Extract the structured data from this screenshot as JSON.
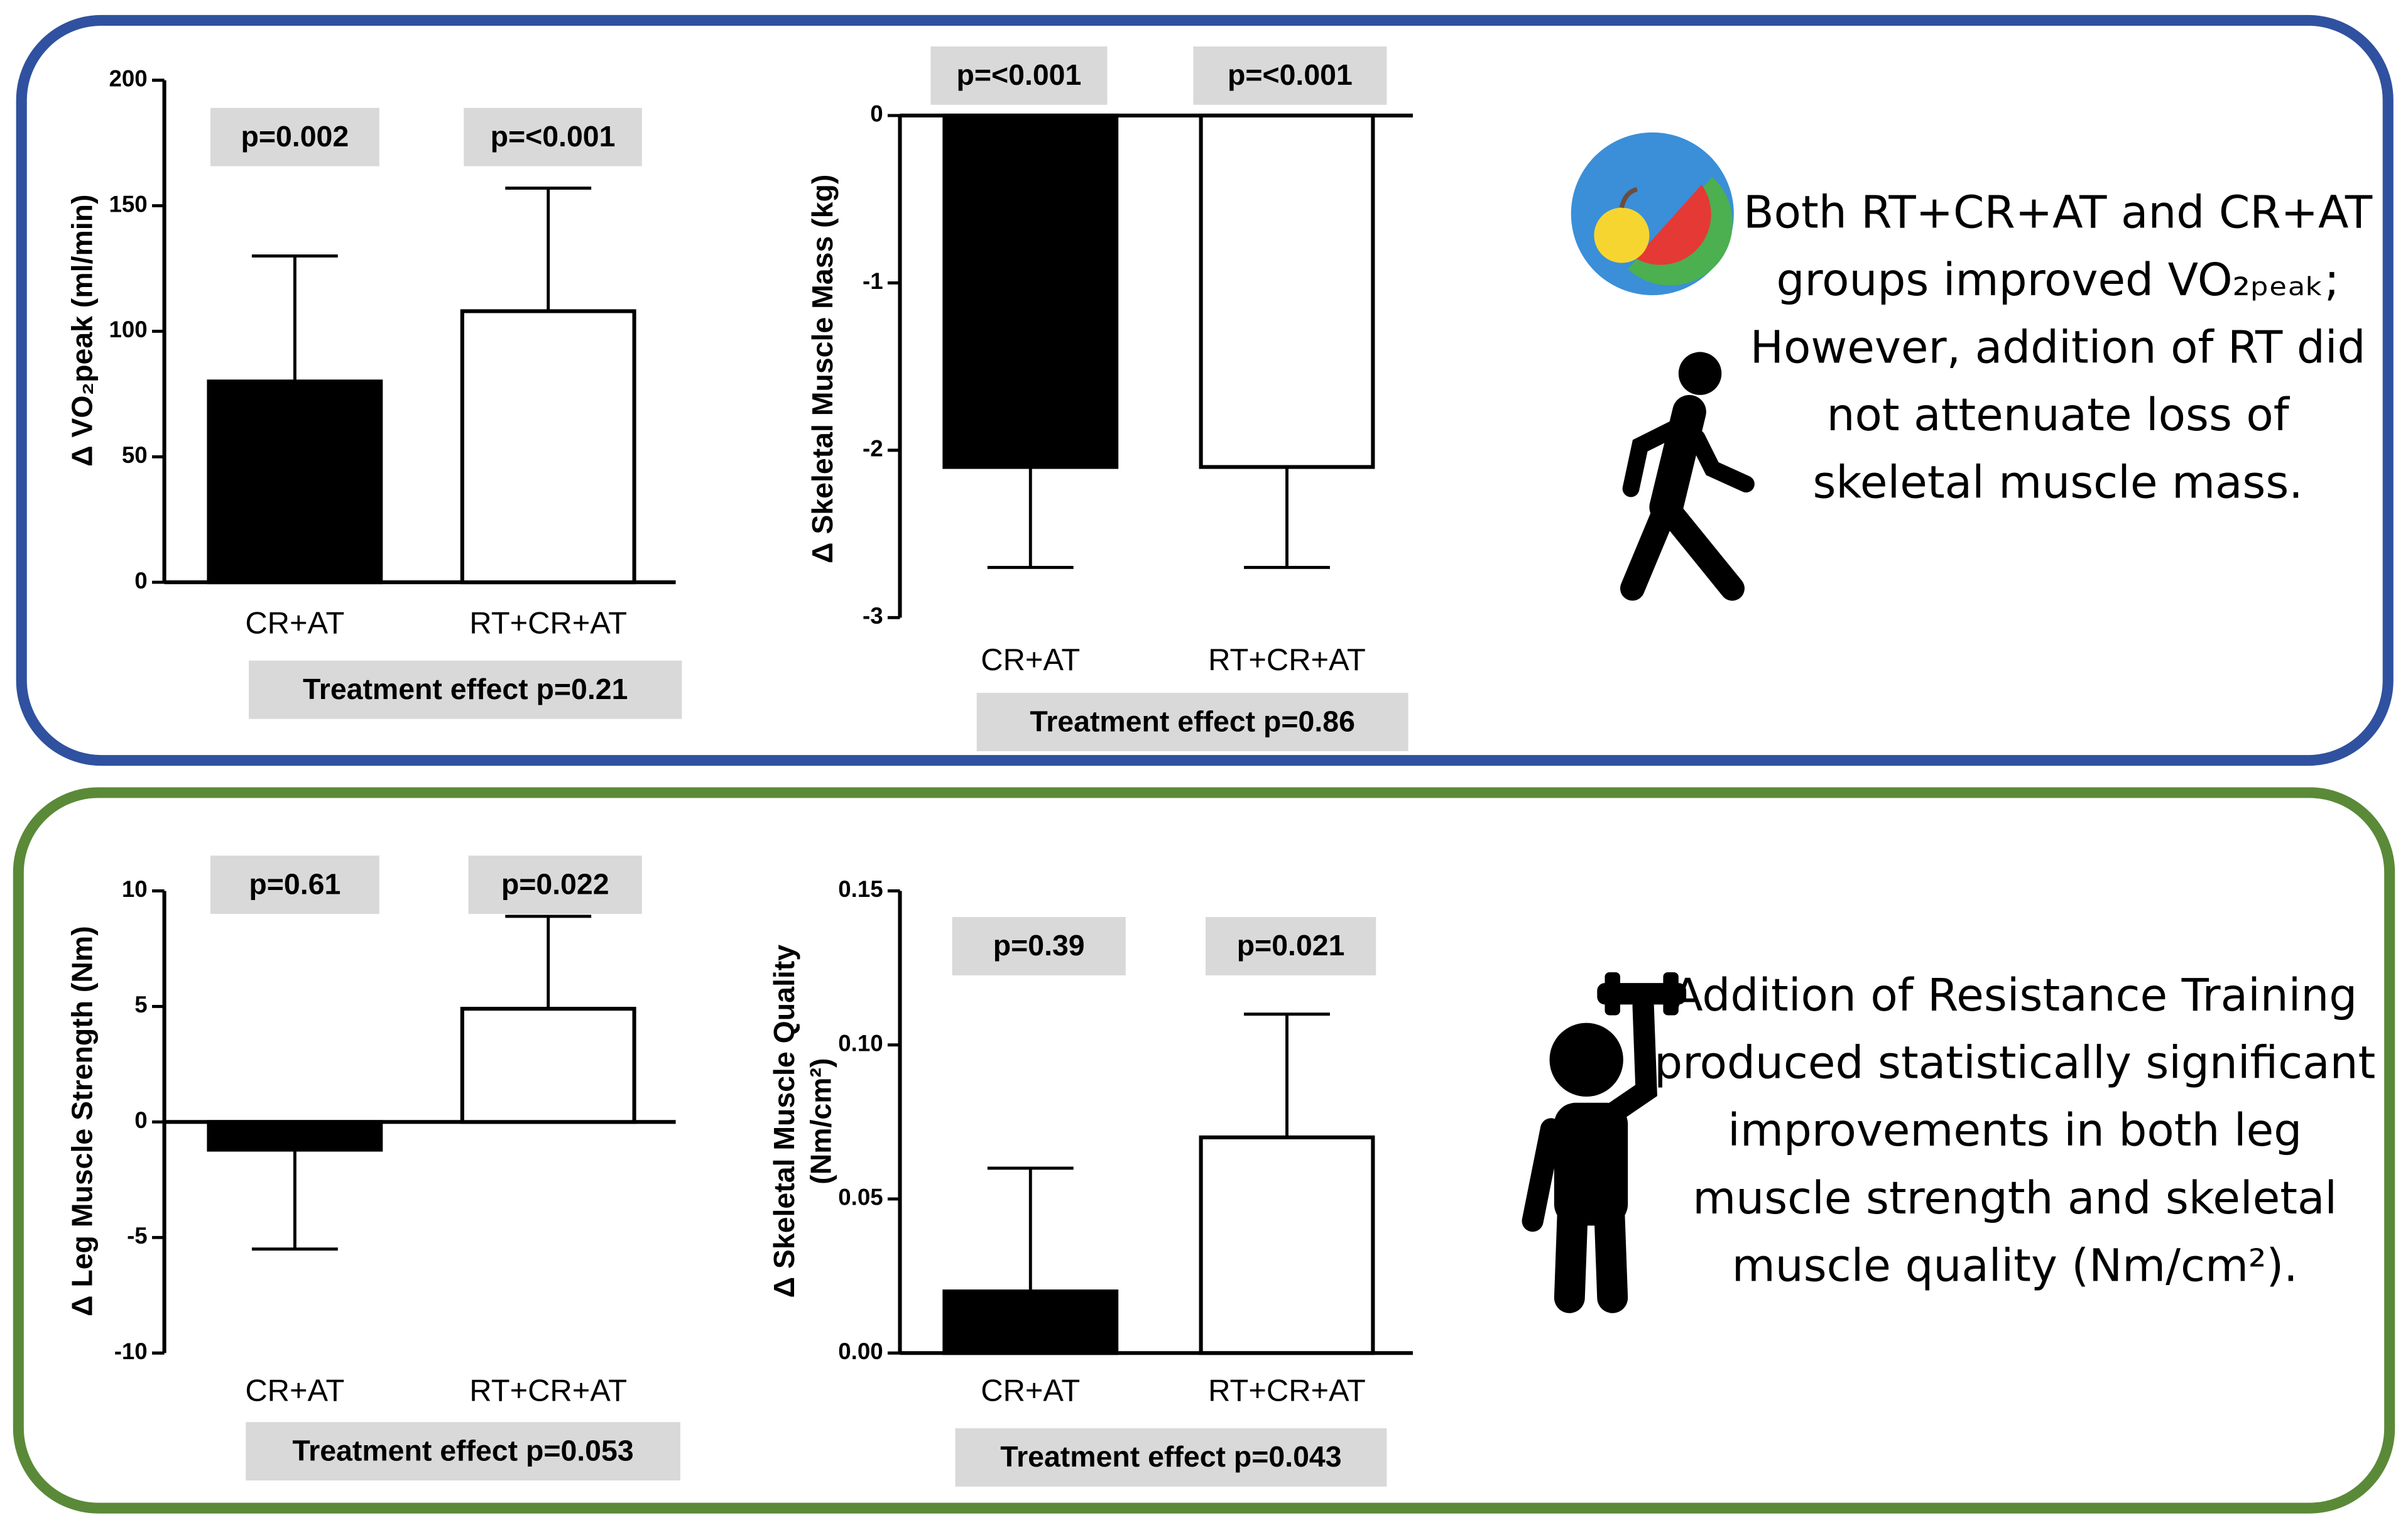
{
  "chart_data": [
    {
      "type": "bar",
      "ylabel": "Δ VO₂peak (ml/min)",
      "categories": [
        "CR+AT",
        "RT+CR+AT"
      ],
      "values": [
        80,
        108
      ],
      "errors": [
        50,
        49
      ],
      "colors": [
        "#000000",
        "#ffffff"
      ],
      "ylim": [
        0,
        200
      ],
      "yticks": [
        0,
        50,
        100,
        150,
        200
      ],
      "pvalues": [
        "p=0.002",
        "p=<0.001"
      ],
      "treatment": "Treatment effect p=0.21"
    },
    {
      "type": "bar",
      "ylabel": "Δ Skeletal Muscle Mass (kg)",
      "categories": [
        "CR+AT",
        "RT+CR+AT"
      ],
      "values": [
        -2.1,
        -2.1
      ],
      "errors": [
        0.6,
        0.6
      ],
      "colors": [
        "#000000",
        "#ffffff"
      ],
      "ylim": [
        -3,
        0
      ],
      "yticks": [
        -3,
        -2,
        -1,
        0
      ],
      "pvalues": [
        "p=<0.001",
        "p=<0.001"
      ],
      "treatment": "Treatment effect p=0.86"
    },
    {
      "type": "bar",
      "ylabel": "Δ Leg Muscle Strength (Nm)",
      "categories": [
        "CR+AT",
        "RT+CR+AT"
      ],
      "values": [
        -1.2,
        4.9
      ],
      "errors": [
        4.3,
        4
      ],
      "colors": [
        "#000000",
        "#ffffff"
      ],
      "ylim": [
        -10,
        10
      ],
      "yticks": [
        -10,
        -5,
        0,
        5,
        10
      ],
      "pvalues": [
        "p=0.61",
        "p=0.022"
      ],
      "treatment": "Treatment effect p=0.053"
    },
    {
      "type": "bar",
      "ylabel": [
        "Δ Skeletal Muscle Quality",
        "(Nm/cm²)"
      ],
      "categories": [
        "CR+AT",
        "RT+CR+AT"
      ],
      "values": [
        0.02,
        0.07
      ],
      "errors": [
        0.04,
        0.04
      ],
      "colors": [
        "#000000",
        "#ffffff"
      ],
      "ylim": [
        0,
        0.15
      ],
      "yticks": [
        {
          "value": 0,
          "label": "0.00"
        },
        0.05,
        {
          "value": 0.1,
          "label": "0.10"
        },
        0.15
      ],
      "pvalues": [
        "p=0.39",
        "p=0.021"
      ],
      "treatment": "Treatment effect p=0.043"
    }
  ],
  "notes": [
    [
      "Both RT+CR+AT and CR+AT",
      "groups improved VO₂ₚₑₐₖ;",
      "However, addition of RT did",
      "not attenuate loss of",
      "skeletal muscle mass."
    ],
    [
      "Addition of Resistance Training",
      "produced statistically significant",
      "improvements in both leg",
      "muscle strength and skeletal",
      "muscle quality (Nm/cm²)."
    ]
  ]
}
